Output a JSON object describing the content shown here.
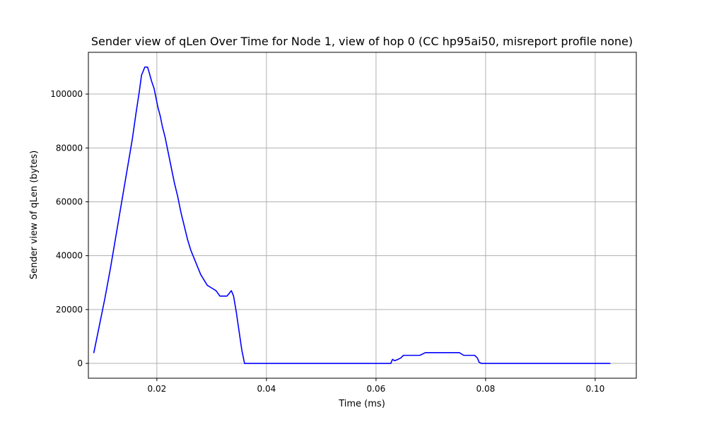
{
  "chart_data": {
    "type": "line",
    "title": "Sender view of qLen Over Time for Node 1, view of hop 0 (CC hp95ai50, misreport profile none)",
    "xlabel": "Time (ms)",
    "ylabel": "Sender view of qLen (bytes)",
    "xlim": [
      0.0075,
      0.1075
    ],
    "ylim": [
      -5500,
      115500
    ],
    "xticks": [
      0.02,
      0.04,
      0.06,
      0.08,
      0.1
    ],
    "xtick_labels": [
      "0.02",
      "0.04",
      "0.06",
      "0.08",
      "0.10"
    ],
    "yticks": [
      0,
      20000,
      40000,
      60000,
      80000,
      100000
    ],
    "ytick_labels": [
      "0",
      "20000",
      "40000",
      "60000",
      "80000",
      "100000"
    ],
    "grid": true,
    "line_color": "#0000ff",
    "series": [
      {
        "name": "",
        "x": [
          0.0085,
          0.0095,
          0.0105,
          0.0115,
          0.0125,
          0.0135,
          0.0145,
          0.0155,
          0.0162,
          0.0168,
          0.0172,
          0.0178,
          0.0183,
          0.0186,
          0.019,
          0.0195,
          0.0198,
          0.0202,
          0.0206,
          0.021,
          0.0215,
          0.022,
          0.0226,
          0.0232,
          0.0238,
          0.0244,
          0.025,
          0.0256,
          0.0262,
          0.0268,
          0.0274,
          0.028,
          0.0286,
          0.0292,
          0.03,
          0.0308,
          0.0315,
          0.0322,
          0.0328,
          0.0332,
          0.0336,
          0.034,
          0.0345,
          0.035,
          0.0355,
          0.036,
          0.0365,
          0.04,
          0.05,
          0.06,
          0.0627,
          0.063,
          0.0634,
          0.064,
          0.0645,
          0.065,
          0.066,
          0.068,
          0.069,
          0.07,
          0.072,
          0.074,
          0.0752,
          0.076,
          0.077,
          0.078,
          0.0785,
          0.0788,
          0.0792,
          0.08,
          0.09,
          0.1,
          0.1027
        ],
        "y": [
          4000,
          14000,
          24000,
          35000,
          47000,
          59000,
          71000,
          83000,
          93000,
          101000,
          107000,
          110000,
          110000,
          108000,
          105000,
          102000,
          99000,
          95000,
          92000,
          88000,
          84000,
          79000,
          73000,
          67000,
          62000,
          56000,
          51000,
          46000,
          42000,
          39000,
          36000,
          33000,
          31000,
          29000,
          28000,
          27000,
          25000,
          25000,
          25000,
          26000,
          27000,
          25000,
          19000,
          12000,
          5000,
          0,
          0,
          0,
          0,
          0,
          0,
          1500,
          1000,
          1500,
          2000,
          3000,
          3000,
          3000,
          4000,
          4000,
          4000,
          4000,
          4000,
          3000,
          3000,
          3000,
          2000,
          500,
          0,
          0,
          0,
          0,
          0
        ]
      }
    ]
  }
}
